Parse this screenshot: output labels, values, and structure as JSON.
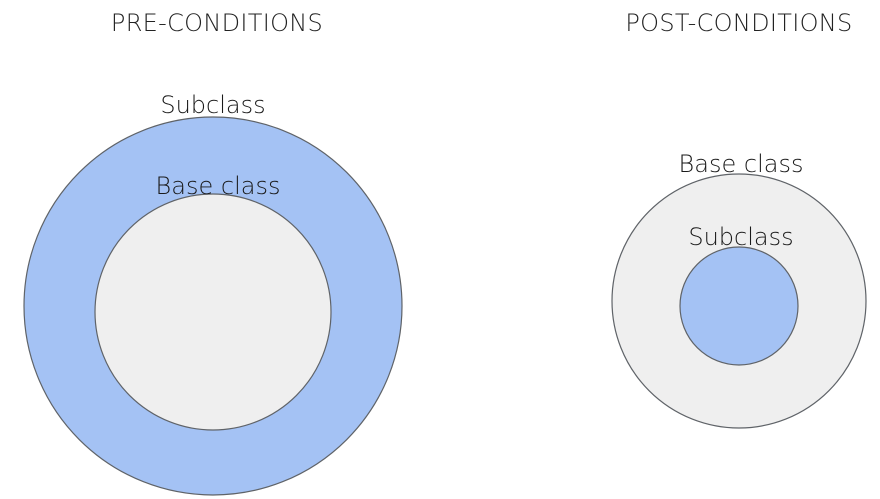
{
  "colors": {
    "subclass_fill": "#a4c2f4",
    "base_class_fill": "#efefef",
    "outline": "#5f6368"
  },
  "pre_conditions": {
    "heading": "PRE-CONDITIONS",
    "outer_label": "Subclass",
    "inner_label": "Base class"
  },
  "post_conditions": {
    "heading": "POST-CONDITIONS",
    "outer_label": "Base class",
    "inner_label": "Subclass"
  }
}
